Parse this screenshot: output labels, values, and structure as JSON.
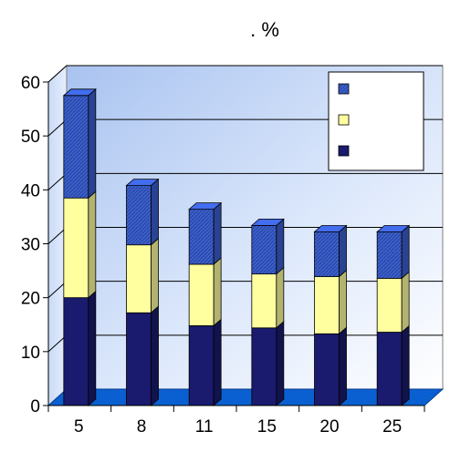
{
  "chart_data": {
    "type": "bar",
    "stacked": true,
    "three_d": true,
    "title": ". %",
    "xlabel": "",
    "ylabel": "",
    "categories": [
      "5",
      "8",
      "11",
      "15",
      "20",
      "25"
    ],
    "series": [
      {
        "values": [
          20,
          17.2,
          14.8,
          14.4,
          13.3,
          13.6
        ],
        "color": "#1a1a6e"
      },
      {
        "values": [
          18.5,
          12.6,
          11.4,
          10,
          10.6,
          10
        ],
        "color": "#ffffa0"
      },
      {
        "values": [
          19,
          11,
          10.2,
          9,
          8.3,
          8.6
        ],
        "color": "#3a5fd0"
      }
    ],
    "ylim": [
      0,
      60
    ],
    "yticks": [
      "0",
      "10",
      "20",
      "30",
      "40",
      "50",
      "60"
    ],
    "grid": true,
    "legend": "top-right",
    "floor_color": "#0a60d0"
  }
}
